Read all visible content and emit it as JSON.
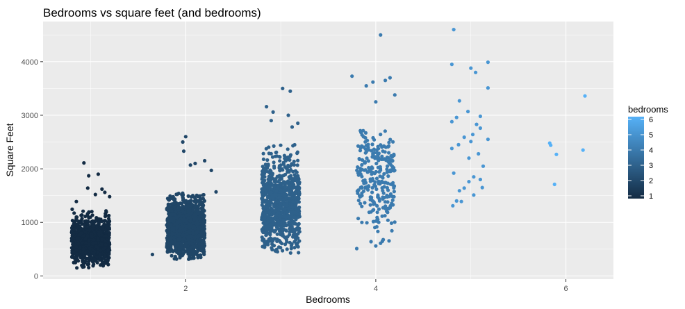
{
  "chart_data": {
    "type": "scatter",
    "title": "Bedrooms vs square feet (and bedrooms)",
    "xlabel": "Bedrooms",
    "ylabel": "Square Feet",
    "xlim": [
      0.5,
      6.5
    ],
    "ylim": [
      -60,
      4750
    ],
    "x_ticks": [
      2,
      4,
      6
    ],
    "x_tick_labels": [
      "2",
      "4",
      "6"
    ],
    "y_ticks": [
      0,
      1000,
      2000,
      3000,
      4000
    ],
    "y_tick_labels": [
      "0",
      "1000",
      "2000",
      "3000",
      "4000"
    ],
    "grid": true,
    "jitter": 0.2,
    "color_scale": {
      "name": "bedrooms",
      "min": 1,
      "max": 6,
      "low_color": "#132B43",
      "high_color": "#56B1F7",
      "breaks": [
        1,
        2,
        3,
        4,
        5,
        6
      ],
      "break_labels": [
        "1",
        "2",
        "3",
        "4",
        "5",
        "6"
      ],
      "legend_position": "right"
    },
    "groups": [
      {
        "bedrooms": 1,
        "n": 900,
        "dense_min": 150,
        "dense_max": 1250,
        "center": 650,
        "spread": 230,
        "outliers": [
          [
            0.93,
            2110
          ],
          [
            0.98,
            1870
          ],
          [
            1.08,
            1900
          ],
          [
            1.15,
            1560
          ],
          [
            1.2,
            1480
          ],
          [
            0.97,
            1640
          ],
          [
            1.05,
            1520
          ],
          [
            1.12,
            1620
          ],
          [
            0.85,
            1390
          ]
        ]
      },
      {
        "bedrooms": 2,
        "n": 1200,
        "dense_min": 300,
        "dense_max": 1550,
        "center": 900,
        "spread": 280,
        "outliers": [
          [
            1.65,
            400
          ],
          [
            1.97,
            2500
          ],
          [
            2.0,
            2600
          ],
          [
            1.98,
            2330
          ],
          [
            2.32,
            1570
          ],
          [
            2.2,
            2150
          ],
          [
            2.1,
            2100
          ],
          [
            2.27,
            1970
          ],
          [
            2.05,
            2070
          ]
        ]
      },
      {
        "bedrooms": 3,
        "n": 900,
        "dense_min": 420,
        "dense_max": 2450,
        "center": 1350,
        "spread": 420,
        "outliers": [
          [
            3.02,
            3500
          ],
          [
            3.1,
            3450
          ],
          [
            2.85,
            3160
          ],
          [
            3.08,
            3000
          ],
          [
            2.92,
            3060
          ],
          [
            3.18,
            2850
          ],
          [
            3.12,
            2780
          ],
          [
            2.9,
            2900
          ]
        ]
      },
      {
        "bedrooms": 4,
        "n": 260,
        "dense_min": 500,
        "dense_max": 2800,
        "center": 1900,
        "spread": 480,
        "outliers": [
          [
            4.05,
            4500
          ],
          [
            3.75,
            3730
          ],
          [
            4.15,
            3700
          ],
          [
            4.1,
            3650
          ],
          [
            3.97,
            3620
          ],
          [
            3.9,
            3550
          ],
          [
            4.2,
            3380
          ],
          [
            4.0,
            3250
          ],
          [
            3.8,
            510
          ],
          [
            4.0,
            560
          ],
          [
            3.95,
            640
          ],
          [
            4.05,
            610
          ]
        ]
      },
      {
        "bedrooms": 5,
        "points": [
          [
            4.82,
            4600
          ],
          [
            4.8,
            3950
          ],
          [
            5.0,
            3880
          ],
          [
            5.18,
            3990
          ],
          [
            5.05,
            3800
          ],
          [
            5.18,
            3510
          ],
          [
            4.88,
            3270
          ],
          [
            4.97,
            3070
          ],
          [
            4.8,
            2880
          ],
          [
            4.85,
            2960
          ],
          [
            5.1,
            2980
          ],
          [
            5.06,
            2830
          ],
          [
            5.1,
            2760
          ],
          [
            5.18,
            2550
          ],
          [
            4.93,
            2590
          ],
          [
            5.02,
            2640
          ],
          [
            4.87,
            2450
          ],
          [
            4.8,
            2380
          ],
          [
            5.0,
            2510
          ],
          [
            4.98,
            2200
          ],
          [
            5.08,
            2280
          ],
          [
            5.13,
            2050
          ],
          [
            4.82,
            1920
          ],
          [
            5.03,
            1850
          ],
          [
            5.1,
            1800
          ],
          [
            5.12,
            1650
          ],
          [
            4.88,
            1590
          ],
          [
            4.93,
            1640
          ],
          [
            4.98,
            1760
          ],
          [
            5.03,
            1510
          ],
          [
            4.85,
            1400
          ],
          [
            4.9,
            1390
          ],
          [
            4.81,
            1310
          ]
        ]
      },
      {
        "bedrooms": 6,
        "points": [
          [
            6.2,
            3360
          ],
          [
            5.83,
            2480
          ],
          [
            5.84,
            2440
          ],
          [
            5.9,
            2270
          ],
          [
            6.18,
            2350
          ],
          [
            5.88,
            1710
          ]
        ]
      }
    ]
  }
}
